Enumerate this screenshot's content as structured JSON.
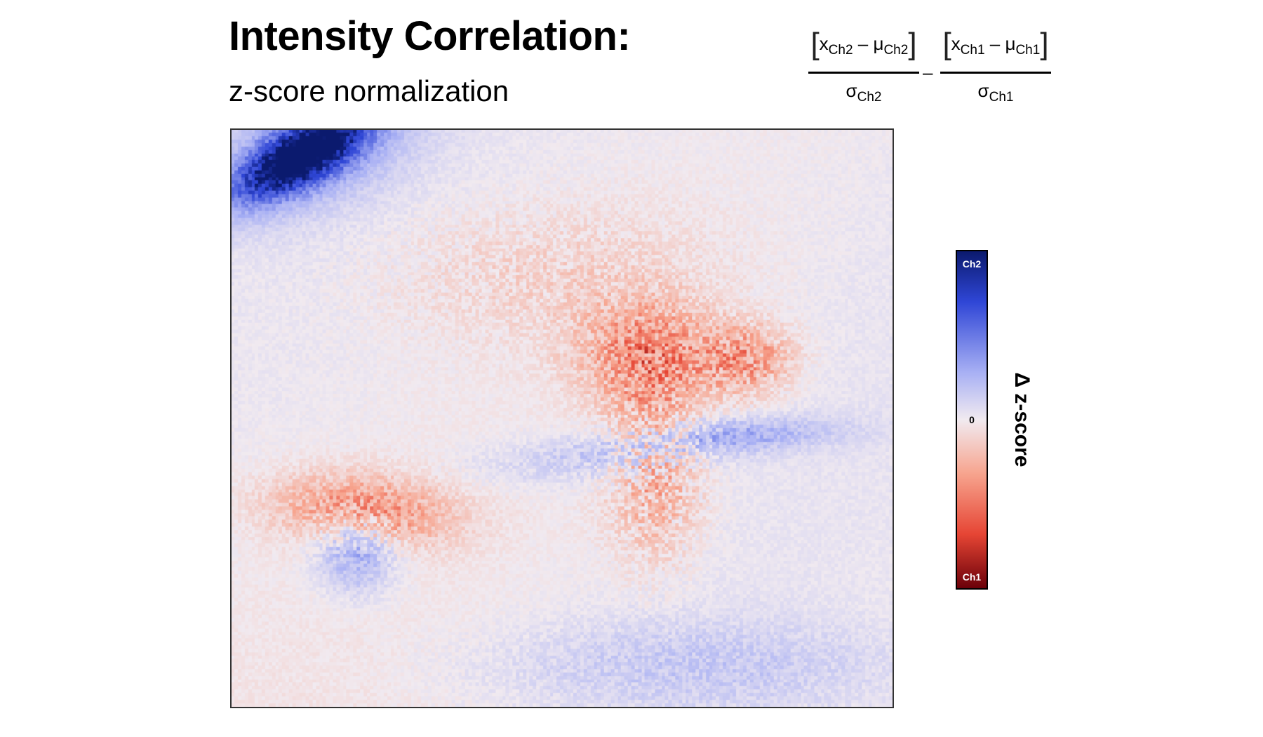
{
  "title": "Intensity Correlation:",
  "subtitle": "z-score normalization",
  "formula": {
    "term1": {
      "x_label": "x",
      "x_sub": "Ch2",
      "minus": "–",
      "mu_label": "μ",
      "mu_sub": "Ch2",
      "sigma_label": "σ",
      "sigma_sub": "Ch2"
    },
    "operator": "–",
    "term2": {
      "x_label": "x",
      "x_sub": "Ch1",
      "minus": "–",
      "mu_label": "μ",
      "mu_sub": "Ch1",
      "sigma_label": "σ",
      "sigma_sub": "Ch1"
    }
  },
  "colorbar": {
    "title": "Δ z-score",
    "top_label": "Ch2",
    "mid_label": "0",
    "bottom_label": "Ch1",
    "colors": {
      "ch2_dark": "#0b1a6e",
      "ch2": "#2f46d6",
      "ch2_light": "#a8b0f4",
      "zero": "#f1eaf0",
      "ch1_light": "#f7a48e",
      "ch1": "#e64534",
      "ch1_dark": "#6b0009"
    }
  },
  "chart_data": {
    "type": "heatmap",
    "title": "Intensity Correlation:",
    "subtitle": "z-score normalization",
    "colorbar_label": "Δ z-score",
    "value_range": [
      -1,
      1
    ],
    "positive_meaning": "Ch2",
    "negative_meaning": "Ch1",
    "grid": {
      "rows": 170,
      "cols": 195
    },
    "background": 0.05,
    "regions": [
      {
        "cx": 0.1,
        "cy": 0.05,
        "rx": 0.13,
        "ry": 0.05,
        "rotate": -0.6,
        "value": 0.85,
        "noise": 0.08
      },
      {
        "cx": 0.13,
        "cy": 0.03,
        "rx": 0.16,
        "ry": 0.1,
        "rotate": -0.5,
        "value": 0.4,
        "noise": 0.06
      },
      {
        "cx": 0.63,
        "cy": 0.39,
        "rx": 0.1,
        "ry": 0.09,
        "rotate": 0,
        "value": -0.45,
        "noise": 0.25
      },
      {
        "cx": 0.78,
        "cy": 0.4,
        "rx": 0.07,
        "ry": 0.06,
        "rotate": 0,
        "value": -0.4,
        "noise": 0.25
      },
      {
        "cx": 0.64,
        "cy": 0.59,
        "rx": 0.07,
        "ry": 0.15,
        "rotate": 0,
        "value": -0.3,
        "noise": 0.28
      },
      {
        "cx": 0.2,
        "cy": 0.66,
        "rx": 0.13,
        "ry": 0.06,
        "rotate": 0.1,
        "value": -0.5,
        "noise": 0.22
      },
      {
        "cx": 0.19,
        "cy": 0.73,
        "rx": 0.06,
        "ry": 0.07,
        "rotate": 0,
        "value": 0.45,
        "noise": 0.1
      },
      {
        "cx": 0.76,
        "cy": 0.53,
        "rx": 0.16,
        "ry": 0.03,
        "rotate": -0.05,
        "value": 0.35,
        "noise": 0.1
      },
      {
        "cx": 0.55,
        "cy": 0.57,
        "rx": 0.17,
        "ry": 0.04,
        "rotate": -0.08,
        "value": 0.22,
        "noise": 0.08
      },
      {
        "cx": 0.7,
        "cy": 0.93,
        "rx": 0.3,
        "ry": 0.08,
        "rotate": 0,
        "value": 0.2,
        "noise": 0.08
      },
      {
        "cx": 0.48,
        "cy": 0.25,
        "rx": 0.25,
        "ry": 0.12,
        "rotate": 0,
        "value": -0.12,
        "noise": 0.1
      }
    ]
  }
}
